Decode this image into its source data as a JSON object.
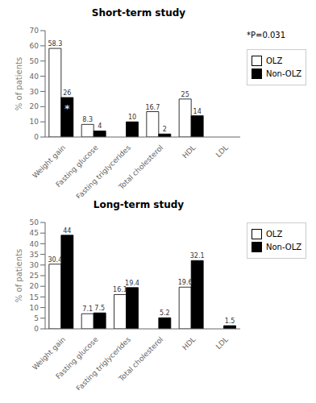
{
  "chart_data": [
    {
      "type": "bar",
      "title": "Short-term study",
      "categories": [
        "Weight gain",
        "Fasting glucose",
        "Fasting triglycerides",
        "Total cholesterol",
        "HDL",
        "LDL"
      ],
      "series": [
        {
          "name": "OLZ",
          "color": "white",
          "values": [
            58.3,
            8.3,
            0,
            16.7,
            25,
            0
          ]
        },
        {
          "name": "Non-OLZ",
          "color": "black",
          "values": [
            26,
            4,
            10,
            2,
            14,
            0
          ]
        }
      ],
      "ylabel": "% of patients",
      "ylim": [
        0,
        70
      ],
      "yticks": [
        0,
        10,
        20,
        30,
        40,
        50,
        60,
        70
      ],
      "data_labels": true,
      "grid": false,
      "legend": "right",
      "annotations": [
        {
          "text": "*P=0.031"
        },
        {
          "text": "*",
          "category": "Weight gain",
          "series": "Non-OLZ"
        }
      ]
    },
    {
      "type": "bar",
      "title": "Long-term study",
      "categories": [
        "Weight gain",
        "Fasting glucose",
        "Fasting triglycerides",
        "Total cholesterol",
        "HDL",
        "LDL"
      ],
      "series": [
        {
          "name": "OLZ",
          "color": "white",
          "values": [
            30.4,
            7.1,
            16.1,
            0,
            19.6,
            0
          ]
        },
        {
          "name": "Non-OLZ",
          "color": "black",
          "values": [
            44,
            7.5,
            19.4,
            5.2,
            32.1,
            1.5
          ]
        }
      ],
      "ylabel": "% of patients",
      "ylim": [
        0,
        50
      ],
      "yticks": [
        0,
        5,
        10,
        15,
        20,
        25,
        30,
        35,
        40,
        45,
        50
      ],
      "data_labels": true,
      "grid": false,
      "legend": "right"
    }
  ]
}
